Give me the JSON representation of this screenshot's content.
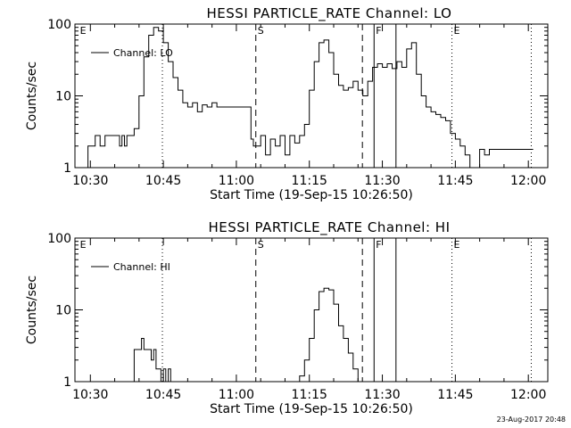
{
  "footer": {
    "timestamp": "23-Aug-2017 20:48"
  },
  "chart_data": [
    {
      "type": "line",
      "title": "HESSI PARTICLE_RATE Channel: LO",
      "xlabel": "Start Time (19-Sep-15 10:26:50)",
      "ylabel": "Counts/sec",
      "yscale": "log",
      "ylim": [
        1,
        100
      ],
      "xlim": [
        26.83,
        124.0
      ],
      "x_unit": "minutes after 10:00",
      "xticks": [
        {
          "value": 30,
          "label": "10:30"
        },
        {
          "value": 45,
          "label": "10:45"
        },
        {
          "value": 60,
          "label": "11:00"
        },
        {
          "value": 75,
          "label": "11:15"
        },
        {
          "value": 90,
          "label": "11:30"
        },
        {
          "value": 105,
          "label": "11:45"
        },
        {
          "value": 120,
          "label": "12:00"
        }
      ],
      "yticks": [
        {
          "value": 1,
          "label": "1"
        },
        {
          "value": 10,
          "label": "10"
        },
        {
          "value": 100,
          "label": "100"
        }
      ],
      "legend": "top-left",
      "series": [
        {
          "name": "Channel: LO",
          "x": [
            29,
            29.5,
            30,
            31,
            32,
            33,
            34,
            35,
            36,
            36.5,
            37,
            37.5,
            38,
            39,
            40,
            41,
            42,
            43,
            44,
            45,
            46,
            47,
            48,
            49,
            50,
            51,
            52,
            53,
            54,
            55,
            56,
            57,
            58,
            59,
            60,
            61,
            61.5,
            62,
            63,
            63.5,
            64,
            65,
            66,
            67,
            68,
            69,
            70,
            71,
            72,
            73,
            74,
            75,
            76,
            77,
            78,
            79,
            80,
            81,
            82,
            83,
            84,
            85,
            86,
            87,
            88,
            89,
            90,
            91,
            92,
            93,
            94,
            95,
            96,
            97,
            98,
            99,
            100,
            101,
            102,
            103,
            104,
            105,
            106,
            107,
            108,
            109,
            110,
            111,
            112,
            113,
            114,
            115,
            116,
            117,
            118,
            119,
            120,
            121
          ],
          "y": [
            1,
            2,
            2,
            2.8,
            2,
            2.8,
            2.8,
            2.8,
            2,
            2.8,
            2,
            2.8,
            2.8,
            3.5,
            10,
            35,
            70,
            90,
            80,
            55,
            30,
            18,
            12,
            8,
            7,
            8,
            6,
            7.5,
            7,
            8,
            7,
            7,
            7,
            7,
            7,
            7,
            7,
            7,
            2.5,
            2,
            2,
            2.8,
            1.5,
            2.5,
            2,
            2.8,
            1.5,
            2.8,
            2.2,
            2.8,
            4,
            12,
            30,
            55,
            60,
            40,
            20,
            14,
            12,
            13,
            16,
            12,
            10,
            16,
            25,
            28,
            25,
            28,
            24,
            30,
            25,
            45,
            55,
            20,
            10,
            7,
            6,
            5.5,
            5,
            4.5,
            3,
            2.5,
            2,
            1.5,
            1,
            1,
            1.8,
            1.5,
            1.8,
            1.8,
            1.8,
            1.8,
            1.8,
            1.8,
            1.8,
            1.8,
            1.8,
            1.8
          ]
        }
      ],
      "markers": [
        {
          "x": 27.5,
          "label": "E",
          "style": "none"
        },
        {
          "x": 44.8,
          "label": "",
          "style": "dotted"
        },
        {
          "x": 64.0,
          "label": "S",
          "style": "dashed"
        },
        {
          "x": 85.9,
          "label": "",
          "style": "dashed"
        },
        {
          "x": 88.3,
          "label": "F",
          "style": "solid"
        },
        {
          "x": 92.8,
          "label": "",
          "style": "solid"
        },
        {
          "x": 104.3,
          "label": "E",
          "style": "dotted"
        },
        {
          "x": 120.6,
          "label": "",
          "style": "dotted"
        }
      ]
    },
    {
      "type": "line",
      "title": "HESSI PARTICLE_RATE Channel: HI",
      "xlabel": "Start Time (19-Sep-15 10:26:50)",
      "ylabel": "Counts/sec",
      "yscale": "log",
      "ylim": [
        1,
        100
      ],
      "xlim": [
        26.83,
        124.0
      ],
      "x_unit": "minutes after 10:00",
      "xticks": [
        {
          "value": 30,
          "label": "10:30"
        },
        {
          "value": 45,
          "label": "10:45"
        },
        {
          "value": 60,
          "label": "11:00"
        },
        {
          "value": 75,
          "label": "11:15"
        },
        {
          "value": 90,
          "label": "11:30"
        },
        {
          "value": 105,
          "label": "11:45"
        },
        {
          "value": 120,
          "label": "12:00"
        }
      ],
      "yticks": [
        {
          "value": 1,
          "label": "1"
        },
        {
          "value": 10,
          "label": "10"
        },
        {
          "value": 100,
          "label": "100"
        }
      ],
      "legend": "top-left",
      "series": [
        {
          "name": "Channel: HI",
          "x": [
            38.5,
            39,
            40,
            40.5,
            41,
            42,
            42.5,
            43,
            43.5,
            44,
            44.5,
            45,
            45.5,
            46,
            46.5,
            47,
            72,
            73,
            74,
            75,
            76,
            77,
            78,
            79,
            80,
            81,
            82,
            83,
            84,
            85
          ],
          "y": [
            1,
            2.8,
            2.8,
            4,
            2.8,
            2.8,
            2,
            2.8,
            1.5,
            1.5,
            1,
            1.5,
            1,
            1.5,
            1,
            1,
            1,
            1.2,
            2,
            4,
            10,
            18,
            20,
            19,
            12,
            6,
            4,
            2.5,
            1.5,
            1
          ],
          "gaps_after_x": [
            47
          ]
        }
      ],
      "markers": [
        {
          "x": 27.5,
          "label": "E",
          "style": "none"
        },
        {
          "x": 44.8,
          "label": "",
          "style": "dotted"
        },
        {
          "x": 64.0,
          "label": "S",
          "style": "dashed"
        },
        {
          "x": 85.9,
          "label": "",
          "style": "dashed"
        },
        {
          "x": 88.3,
          "label": "F",
          "style": "solid"
        },
        {
          "x": 92.8,
          "label": "",
          "style": "solid"
        },
        {
          "x": 104.3,
          "label": "E",
          "style": "dotted"
        },
        {
          "x": 120.6,
          "label": "",
          "style": "dotted"
        }
      ]
    }
  ]
}
